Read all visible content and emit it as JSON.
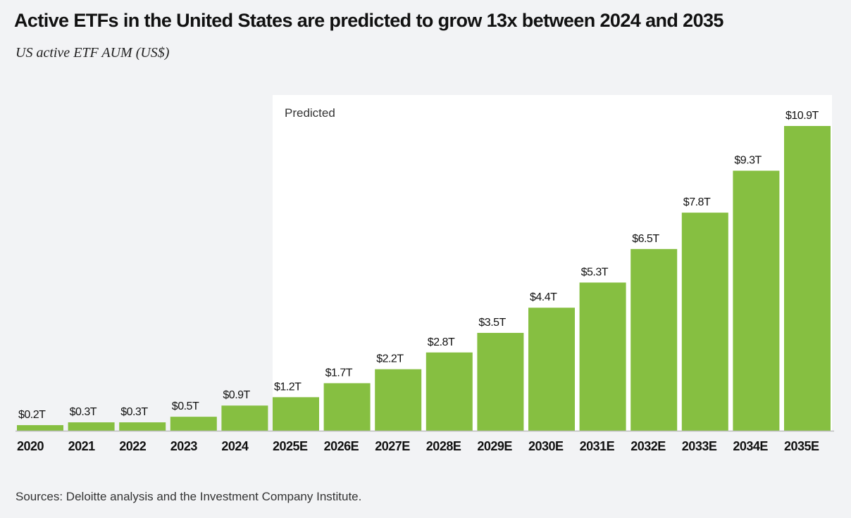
{
  "chart_data": {
    "type": "bar",
    "title": "Active ETFs in the United States are predicted to grow 13x between 2024 and 2035",
    "subtitle": "US active ETF AUM (US$)",
    "categories": [
      "2020",
      "2021",
      "2022",
      "2023",
      "2024",
      "2025E",
      "2026E",
      "2027E",
      "2028E",
      "2029E",
      "2030E",
      "2031E",
      "2032E",
      "2033E",
      "2034E",
      "2035E"
    ],
    "values": [
      0.2,
      0.3,
      0.3,
      0.5,
      0.9,
      1.2,
      1.7,
      2.2,
      2.8,
      3.5,
      4.4,
      5.3,
      6.5,
      7.8,
      9.3,
      10.9
    ],
    "data_labels": [
      "$0.2T",
      "$0.3T",
      "$0.3T",
      "$0.5T",
      "$0.9T",
      "$1.2T",
      "$1.7T",
      "$2.2T",
      "$2.8T",
      "$3.5T",
      "$4.4T",
      "$5.3T",
      "$6.5T",
      "$7.8T",
      "$9.3T",
      "$10.9T"
    ],
    "unit": "US$ trillions",
    "xlabel": "",
    "ylabel": "",
    "ylim": [
      0,
      11
    ],
    "grid": false,
    "predicted_region": {
      "label": "Predicted",
      "from": "2025E",
      "to": "2035E"
    },
    "colors": {
      "bar": "#86bf41",
      "background": "#f2f3f5",
      "predicted_background": "#ffffff"
    },
    "source": "Sources: Deloitte analysis and the Investment Company Institute."
  }
}
